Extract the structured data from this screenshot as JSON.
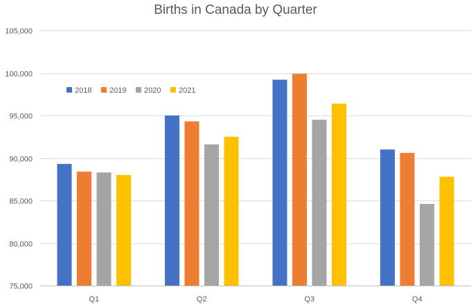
{
  "chart_data": {
    "type": "bar",
    "title": "Births in Canada by Quarter",
    "xlabel": "",
    "ylabel": "",
    "categories": [
      "Q1",
      "Q2",
      "Q3",
      "Q4"
    ],
    "ylim": [
      75000,
      105000
    ],
    "yticks": [
      75000,
      80000,
      85000,
      90000,
      95000,
      100000,
      105000
    ],
    "ytick_labels": [
      "75,000",
      "80,000",
      "85,000",
      "90,000",
      "95,000",
      "100,000",
      "105,000"
    ],
    "grid": true,
    "legend_position": "top-left",
    "series": [
      {
        "name": "2018",
        "color": "#4472C4",
        "values": [
          89300,
          95000,
          99200,
          91000
        ]
      },
      {
        "name": "2019",
        "color": "#ED7D31",
        "values": [
          88400,
          94300,
          99900,
          90600
        ]
      },
      {
        "name": "2020",
        "color": "#A5A5A5",
        "values": [
          88300,
          91600,
          94500,
          84600
        ]
      },
      {
        "name": "2021",
        "color": "#FFC000",
        "values": [
          88000,
          92500,
          96400,
          87800
        ]
      }
    ]
  }
}
